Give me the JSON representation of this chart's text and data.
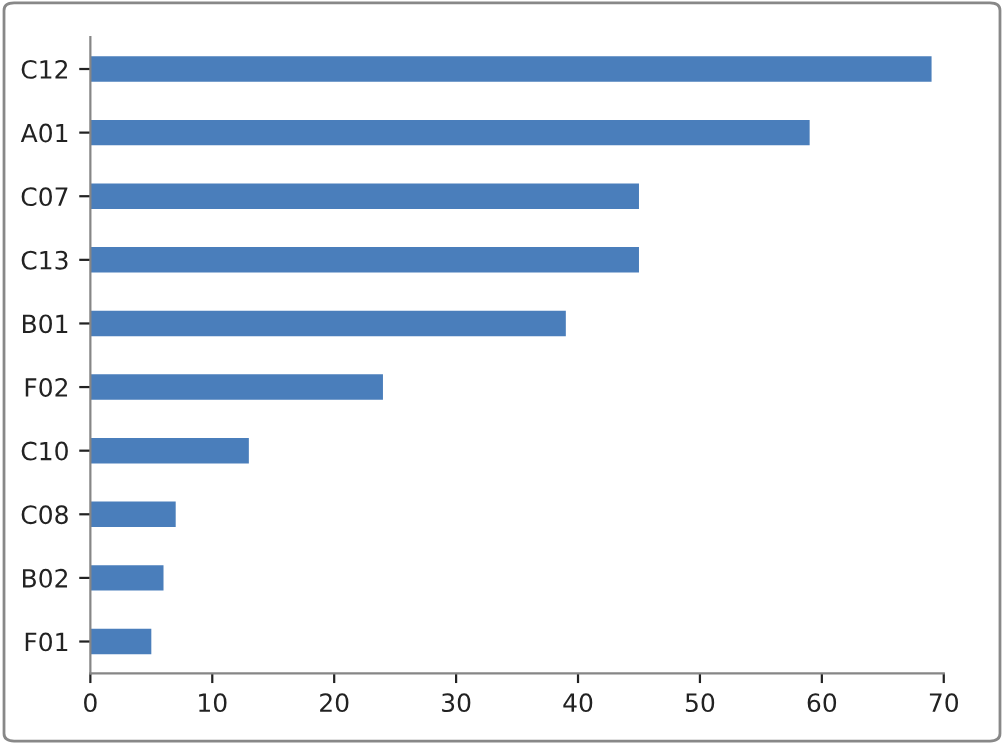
{
  "chart_data": {
    "type": "bar",
    "orientation": "horizontal",
    "categories": [
      "C12",
      "A01",
      "C07",
      "C13",
      "B01",
      "F02",
      "C10",
      "C08",
      "B02",
      "F01"
    ],
    "values": [
      69,
      59,
      45,
      45,
      39,
      24,
      13,
      7,
      6,
      5
    ],
    "color": "#4a7ebb",
    "xlim": [
      0,
      70
    ],
    "xticks": [
      0,
      10,
      20,
      30,
      40,
      50,
      60,
      70
    ],
    "grid": false,
    "legend": false
  }
}
